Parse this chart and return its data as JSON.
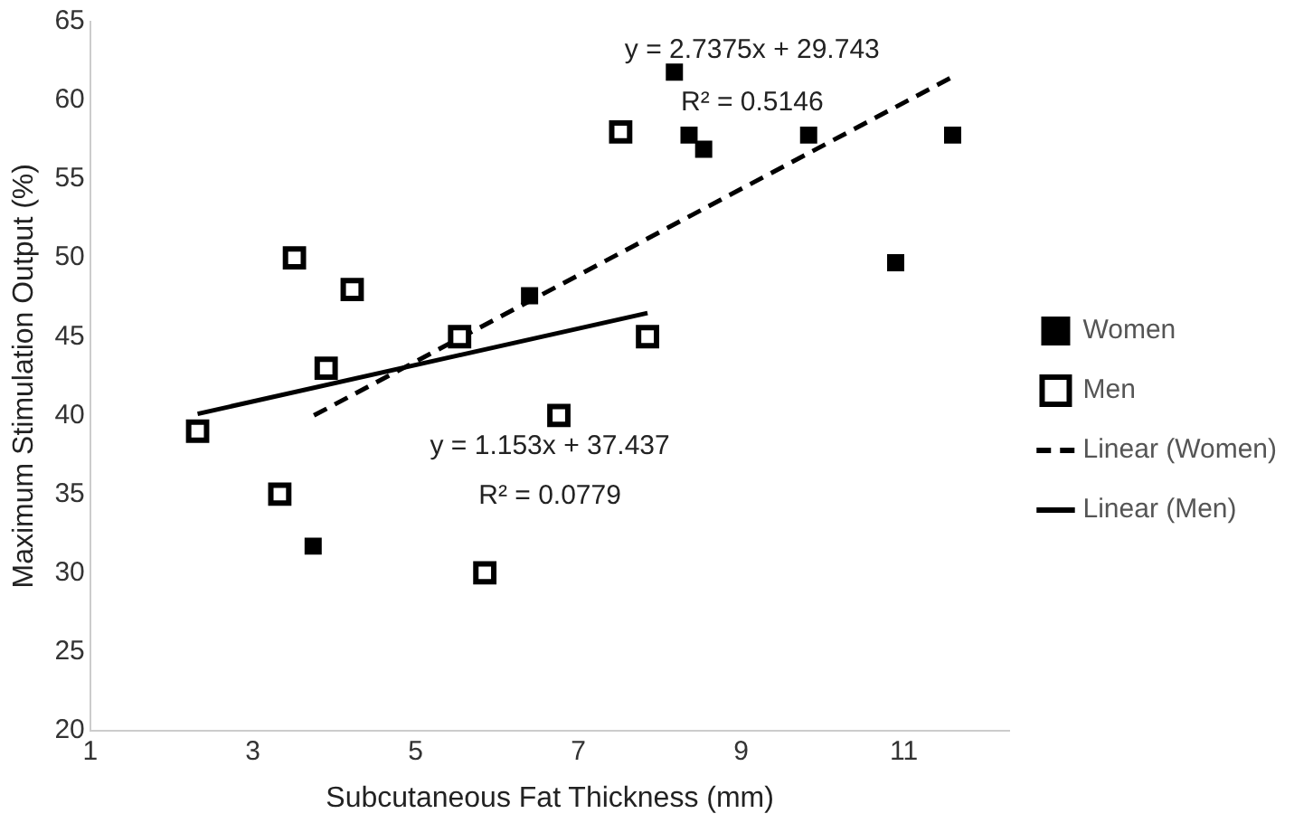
{
  "chart_data": {
    "type": "scatter",
    "xlabel": "Subcutaneous Fat Thickness (mm)",
    "ylabel": "Maximum Stimulation Output (%)",
    "xlim": [
      1,
      12.3
    ],
    "xticks": [
      1,
      3,
      5,
      7,
      9,
      11
    ],
    "ylim": [
      20,
      65
    ],
    "yticks": [
      20,
      25,
      30,
      35,
      40,
      45,
      50,
      55,
      60,
      65
    ],
    "grid": false,
    "legend": "right",
    "marker": "square",
    "series": [
      {
        "name": "Women",
        "color": "#000000",
        "x": [
          8.18,
          8.36,
          8.54,
          9.83,
          11.6,
          10.9,
          6.4,
          3.74
        ],
        "values": [
          61.8,
          57.8,
          56.9,
          57.8,
          57.8,
          49.7,
          47.6,
          31.7
        ]
      },
      {
        "name": "Men",
        "color": "#000000",
        "x": [
          7.52,
          3.51,
          4.22,
          3.9,
          5.54,
          7.85,
          6.76,
          2.32,
          3.33,
          5.85
        ],
        "values": [
          58,
          50,
          48,
          43,
          45,
          45,
          40,
          39,
          35,
          30
        ]
      },
      {
        "name": "Linear (Women)",
        "type": "line",
        "color": "#000000",
        "line_style": "dashed",
        "marker": "none",
        "x": [
          3.75,
          11.6
        ],
        "values": [
          40.0,
          61.5
        ]
      },
      {
        "name": "Linear (Men)",
        "type": "line",
        "color": "#000000",
        "line_style": "solid",
        "marker": "none",
        "x": [
          2.32,
          7.85
        ],
        "values": [
          40.1,
          46.5
        ]
      }
    ],
    "annotations": [
      "y = 2.7375x + 29.743",
      "R² = 0.5146",
      "y = 1.153x + 37.437",
      "R² = 0.0779"
    ]
  }
}
